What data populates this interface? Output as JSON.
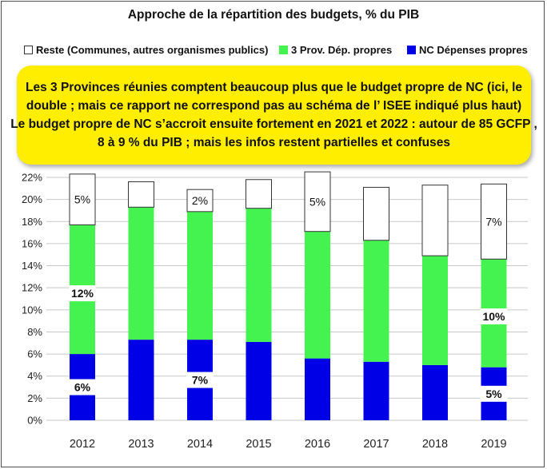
{
  "chart_data": {
    "type": "bar",
    "stacked": true,
    "title": "Approche de la répartition des budgets, % du PIB",
    "categories": [
      "2012",
      "2013",
      "2014",
      "2015",
      "2016",
      "2017",
      "2018",
      "2019"
    ],
    "series": [
      {
        "name": "NC Dépenses propres",
        "color": "#0000e6",
        "values": [
          6.0,
          7.3,
          7.3,
          7.1,
          5.6,
          5.3,
          5.0,
          4.8
        ]
      },
      {
        "name": "3 Prov. Dép. propres",
        "color": "#44f34f",
        "values": [
          11.7,
          12.0,
          11.6,
          12.1,
          11.5,
          11.0,
          9.9,
          9.8
        ]
      },
      {
        "name": "Reste (Communes, autres organismes publics)",
        "color": "#ffffff",
        "values": [
          4.6,
          2.3,
          2.0,
          2.6,
          5.4,
          4.8,
          6.4,
          6.8
        ]
      }
    ],
    "data_labels": [
      {
        "category_index": 0,
        "series_index": 2,
        "text": "5%",
        "bold": false
      },
      {
        "category_index": 2,
        "series_index": 2,
        "text": "2%",
        "bold": false
      },
      {
        "category_index": 4,
        "series_index": 2,
        "text": "5%",
        "bold": false
      },
      {
        "category_index": 7,
        "series_index": 2,
        "text": "7%",
        "bold": false
      },
      {
        "category_index": 0,
        "series_index": 1,
        "text": "12%",
        "bold": true
      },
      {
        "category_index": 7,
        "series_index": 1,
        "text": "10%",
        "bold": true
      },
      {
        "category_index": 0,
        "series_index": 0,
        "text": "6%",
        "bold": true
      },
      {
        "category_index": 2,
        "series_index": 0,
        "text": "7%",
        "bold": true
      },
      {
        "category_index": 7,
        "series_index": 0,
        "text": "5%",
        "bold": true
      }
    ],
    "ylim": [
      0,
      22
    ],
    "ytick_step": 2,
    "ytick_suffix": "%",
    "xlabel": "",
    "ylabel": "",
    "grid": true,
    "legend": [
      {
        "label": "Reste (Communes, autres organismes publics)",
        "color": "#ffffff"
      },
      {
        "label": "3 Prov. Dép. propres",
        "color": "#44f34f"
      },
      {
        "label": "NC Dépenses propres",
        "color": "#0000e6"
      }
    ]
  },
  "annotation": {
    "lines": [
      "Les 3 Provinces réunies comptent beaucoup  plus que le budget propre de NC (ici, le",
      "double ; mais ce rapport ne correspond pas au schéma de l’ ISEE indiqué plus haut)",
      "Le budget propre de NC s’accroit ensuite fortement en 2021 et 2022 : autour de 85 GCFP  ,",
      "8 à 9 % du  PIB ; mais les infos restent partielles et confuses"
    ]
  }
}
